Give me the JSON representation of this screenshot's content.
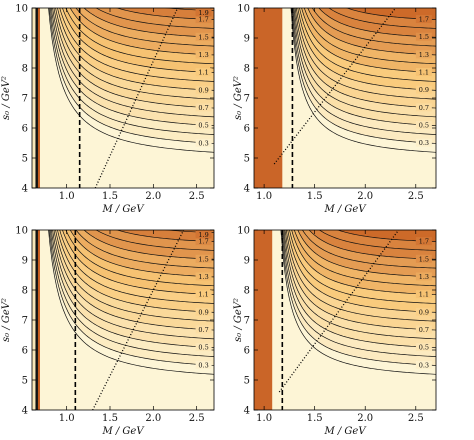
{
  "figure": {
    "ylabel": "s₀ / GeV²",
    "xlabel": "M / GeV"
  },
  "chart_data": [
    {
      "type": "heatmap",
      "xlim": [
        0.6,
        2.7
      ],
      "ylim": [
        4,
        10
      ],
      "xticks": [
        "1.0",
        "1.5",
        "2.0",
        "2.5"
      ],
      "xticks_values": [
        1.0,
        1.5,
        2.0,
        2.5
      ],
      "yticks": [
        "4",
        "5",
        "6",
        "7",
        "8",
        "9",
        "10"
      ],
      "yticks_values": [
        4,
        5,
        6,
        7,
        8,
        9,
        10
      ],
      "contour_labels": [
        "0.3",
        "0.5",
        "0.7",
        "0.9",
        "1.1",
        "1.3",
        "1.5",
        "1.7",
        "1.9"
      ],
      "contour_values": [
        0.3,
        0.5,
        0.7,
        0.9,
        1.1,
        1.3,
        1.5,
        1.7,
        1.9
      ],
      "dashed_line_x": 1.15,
      "dotted_line": {
        "x": [
          1.33,
          2.28
        ],
        "y": [
          4,
          10
        ]
      },
      "colormap": [
        "#fdf5d6",
        "#f9c877",
        "#c75d1f"
      ],
      "grid": false
    },
    {
      "type": "heatmap",
      "xlim": [
        0.9,
        2.7
      ],
      "ylim": [
        4,
        10
      ],
      "xticks": [
        "1.0",
        "1.5",
        "2.0",
        "2.5"
      ],
      "xticks_values": [
        1.0,
        1.5,
        2.0,
        2.5
      ],
      "yticks": [
        "4",
        "5",
        "6",
        "7",
        "8",
        "9",
        "10"
      ],
      "yticks_values": [
        4,
        5,
        6,
        7,
        8,
        9,
        10
      ],
      "contour_labels": [
        "0.3",
        "0.5",
        "0.7",
        "0.9",
        "1.1",
        "1.3",
        "1.5",
        "1.7"
      ],
      "contour_values": [
        0.3,
        0.5,
        0.7,
        0.9,
        1.1,
        1.3,
        1.5,
        1.7
      ],
      "dashed_line_x": 1.28,
      "dotted_line": {
        "x": [
          1.1,
          2.3
        ],
        "y": [
          4.8,
          10
        ]
      },
      "colormap": [
        "#fdf5d6",
        "#f9c877",
        "#c75d1f"
      ],
      "grid": false
    },
    {
      "type": "heatmap",
      "xlim": [
        0.6,
        2.7
      ],
      "ylim": [
        4,
        10
      ],
      "xticks": [
        "1.0",
        "1.5",
        "2.0",
        "2.5"
      ],
      "xticks_values": [
        1.0,
        1.5,
        2.0,
        2.5
      ],
      "yticks": [
        "4",
        "5",
        "6",
        "7",
        "8",
        "9",
        "10"
      ],
      "yticks_values": [
        4,
        5,
        6,
        7,
        8,
        9,
        10
      ],
      "contour_labels": [
        "0.3",
        "0.5",
        "0.7",
        "0.9",
        "1.1",
        "1.3",
        "1.5",
        "1.7",
        "1.9"
      ],
      "contour_values": [
        0.3,
        0.5,
        0.7,
        0.9,
        1.1,
        1.3,
        1.5,
        1.7,
        1.9
      ],
      "dashed_line_x": 1.1,
      "dotted_line": {
        "x": [
          1.3,
          2.35
        ],
        "y": [
          4,
          10
        ]
      },
      "colormap": [
        "#fdf5d6",
        "#f9c877",
        "#c75d1f"
      ],
      "grid": false
    },
    {
      "type": "heatmap",
      "xlim": [
        0.9,
        2.7
      ],
      "ylim": [
        4,
        10
      ],
      "xticks": [
        "1.0",
        "1.5",
        "2.0",
        "2.5"
      ],
      "xticks_values": [
        1.0,
        1.5,
        2.0,
        2.5
      ],
      "yticks": [
        "4",
        "5",
        "6",
        "7",
        "8",
        "9",
        "10"
      ],
      "yticks_values": [
        4,
        5,
        6,
        7,
        8,
        9,
        10
      ],
      "contour_labels": [
        "0.3",
        "0.5",
        "0.7",
        "0.9",
        "1.1",
        "1.3",
        "1.5",
        "1.7"
      ],
      "contour_values": [
        0.3,
        0.5,
        0.7,
        0.9,
        1.1,
        1.3,
        1.5,
        1.7
      ],
      "dashed_line_x": 1.18,
      "dotted_line": {
        "x": [
          1.15,
          2.33
        ],
        "y": [
          4.6,
          10
        ]
      },
      "colormap": [
        "#fdf5d6",
        "#f9c877",
        "#c75d1f"
      ],
      "grid": false
    }
  ]
}
